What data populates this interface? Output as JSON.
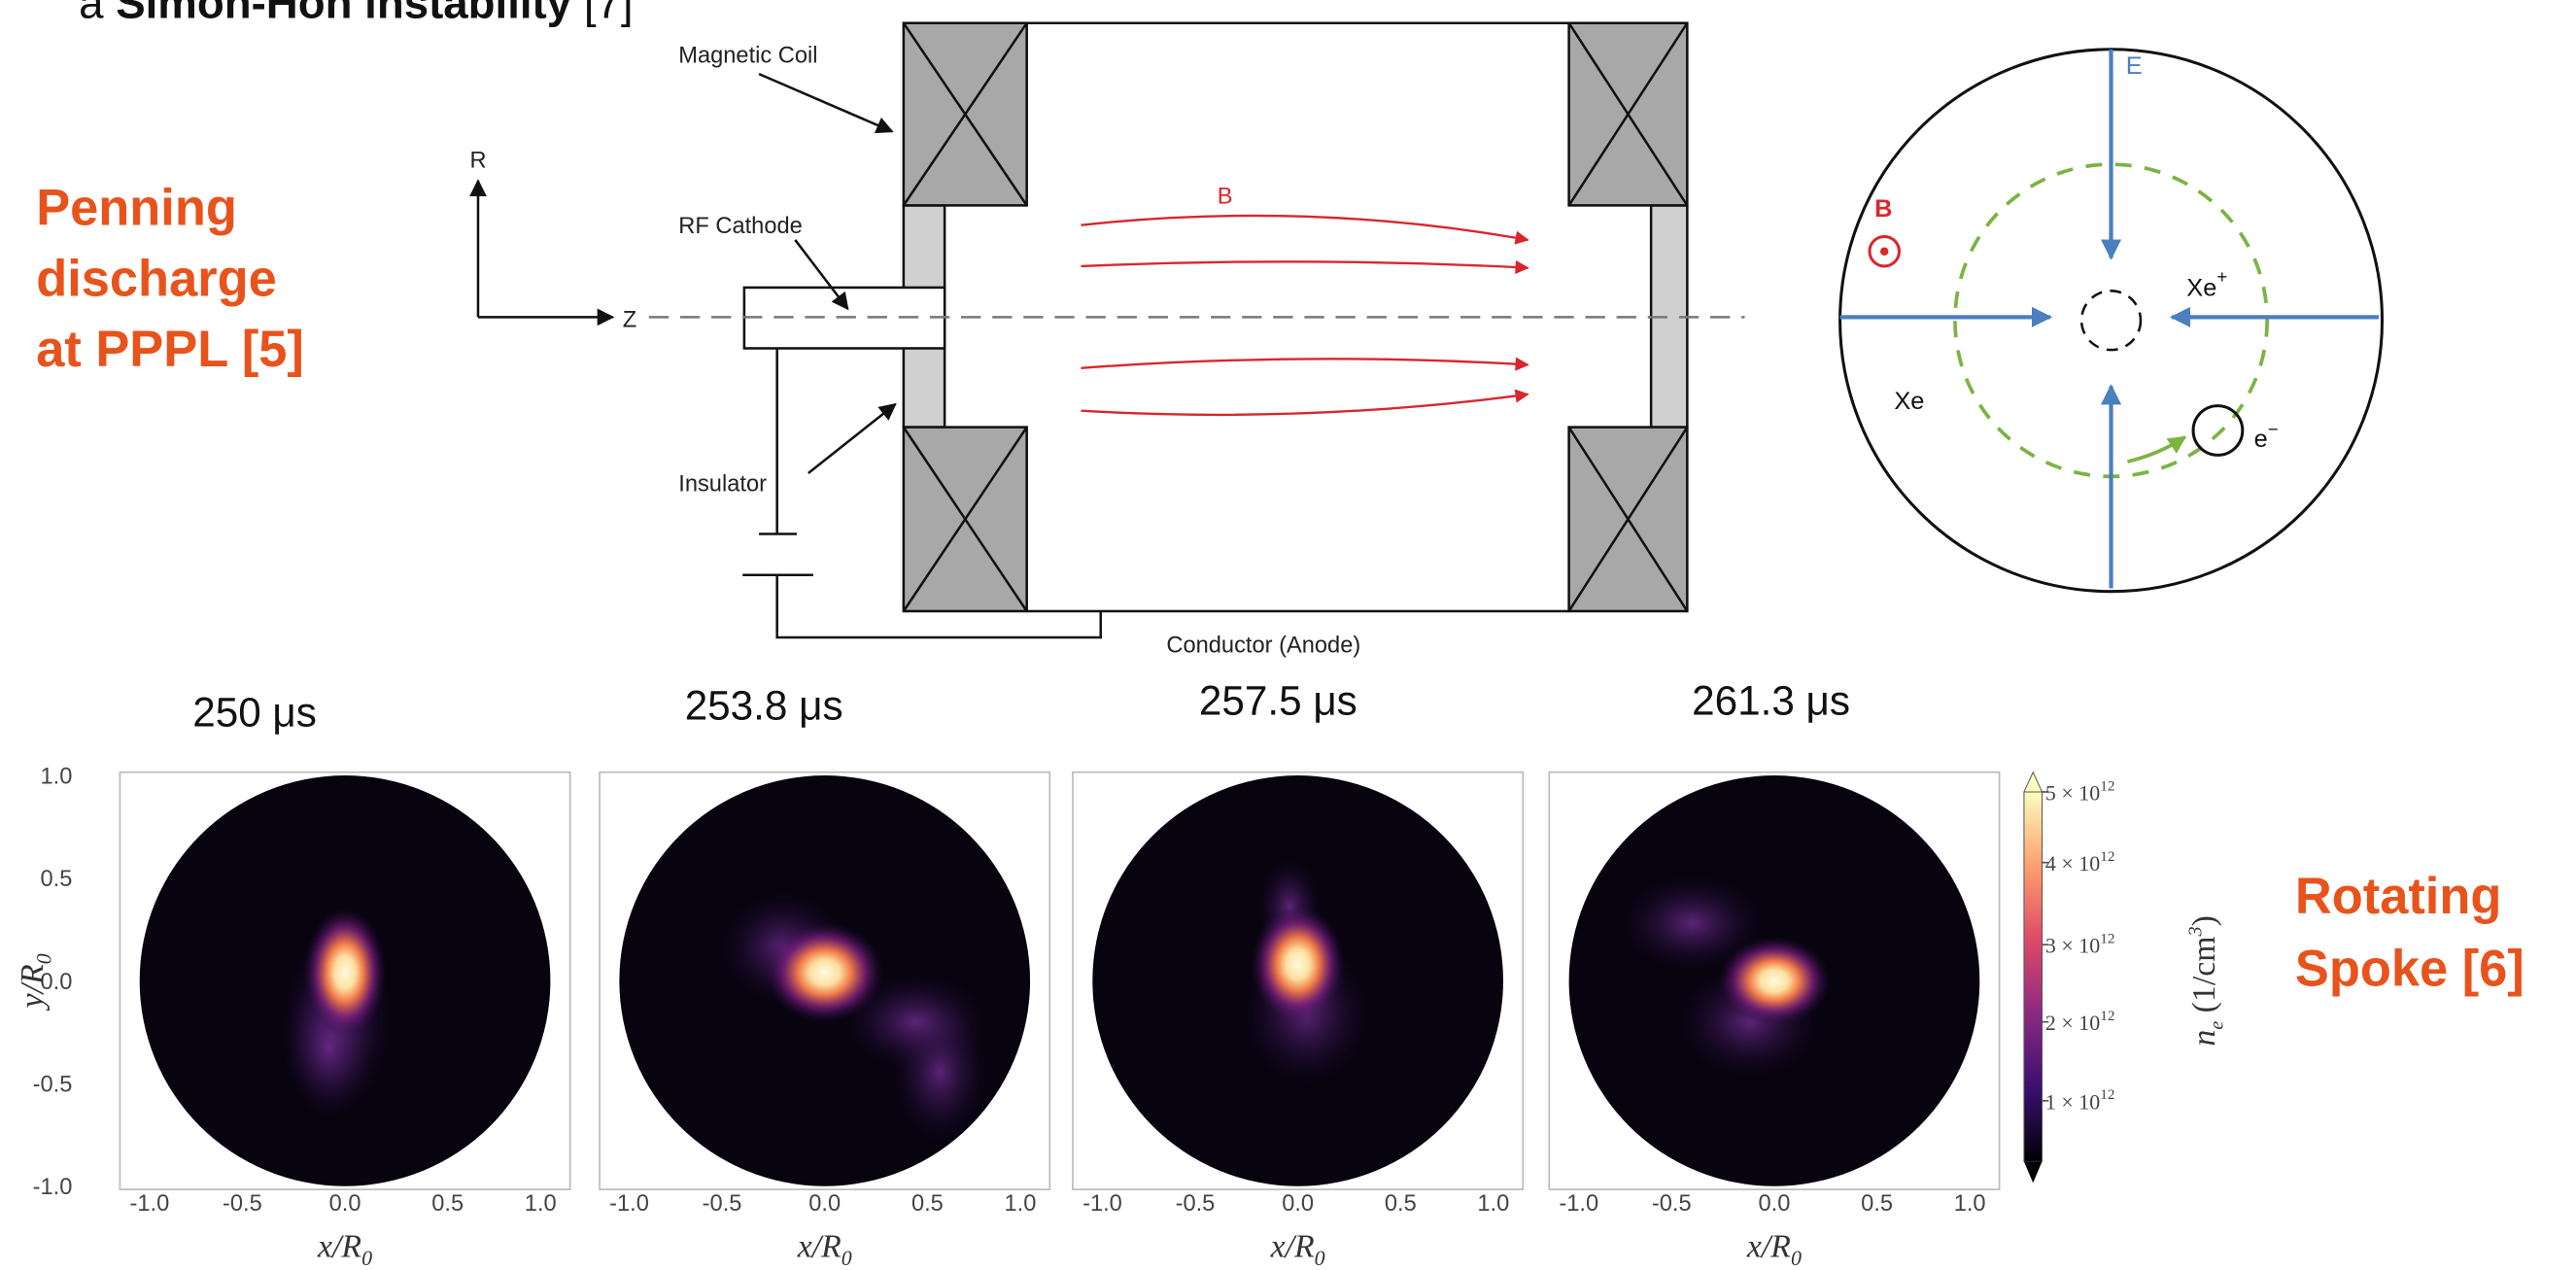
{
  "header": {
    "prefix": "a ",
    "bold": "Simon-Hoh instability",
    "suffix": " [7]"
  },
  "labels": {
    "penning": [
      "Penning",
      "discharge",
      "at PPPL [5]"
    ],
    "spoke": [
      "Rotating",
      "Spoke [6]"
    ]
  },
  "schematic": {
    "magnetic_coil": "Magnetic Coil",
    "rf_cathode": "RF Cathode",
    "insulator": "Insulator",
    "conductor": "Conductor (Anode)",
    "r_axis": "R",
    "z_axis": "Z",
    "b_field": "B"
  },
  "cross_section": {
    "e_field": "E",
    "b_field": "B",
    "ion": "Xe",
    "ion_charge": "+",
    "neutral": "Xe",
    "electron": "e",
    "electron_charge": "−"
  },
  "plots": {
    "times": [
      "250 μs",
      "253.8 μs",
      "257.5 μs",
      "261.3 μs"
    ],
    "x_ticks": [
      "-1.0",
      "-0.5",
      "0.0",
      "0.5",
      "1.0"
    ],
    "y_ticks": [
      "1.0",
      "0.5",
      "0.0",
      "-0.5",
      "-1.0"
    ],
    "x_label": "x/R",
    "y_label": "y/R",
    "axis_subscript": "0",
    "colorbar_ticks": [
      "5 × 10",
      "4 × 10",
      "3 × 10",
      "2 × 10",
      "1 × 10"
    ],
    "colorbar_exponent": "12",
    "colorbar_label": "n",
    "colorbar_label_subscript": "e",
    "colorbar_unit": " (1/cm",
    "colorbar_unit_power": "3",
    "colorbar_unit_close": ")"
  }
}
